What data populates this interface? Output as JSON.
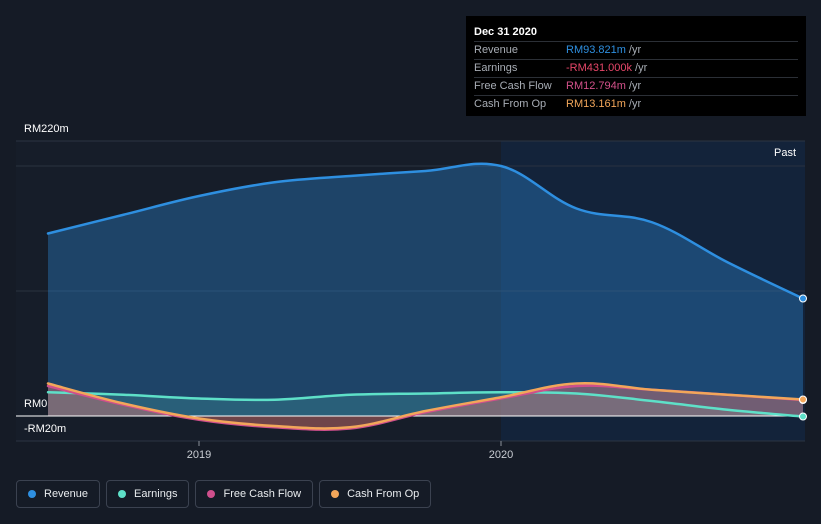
{
  "tooltip": {
    "date": "Dec 31 2020",
    "rows": [
      {
        "label": "Revenue",
        "value": "RM93.821m",
        "unit": "/yr",
        "color": "#2e8fe0"
      },
      {
        "label": "Earnings",
        "value": "-RM431.000k",
        "unit": "/yr",
        "color": "#e8476a"
      },
      {
        "label": "Free Cash Flow",
        "value": "RM12.794m",
        "unit": "/yr",
        "color": "#d3518a"
      },
      {
        "label": "Cash From Op",
        "value": "RM13.161m",
        "unit": "/yr",
        "color": "#f2a65a"
      }
    ]
  },
  "past_label": "Past",
  "legend": [
    {
      "label": "Revenue",
      "color": "#2e8fe0"
    },
    {
      "label": "Earnings",
      "color": "#5ee0c8"
    },
    {
      "label": "Free Cash Flow",
      "color": "#cf4f8c"
    },
    {
      "label": "Cash From Op",
      "color": "#f2a65a"
    }
  ],
  "chart_data": {
    "type": "area",
    "y_tick_labels": [
      "RM220m",
      "RM0",
      "-RM20m"
    ],
    "x_tick_labels": [
      "2019",
      "2020"
    ],
    "ylim": [
      -20,
      220
    ],
    "x_range": [
      2018.5,
      2021.0
    ],
    "past_region_start": 2020.0,
    "grid": true,
    "legend_position": "bottom",
    "series": [
      {
        "name": "Revenue",
        "color": "#2e8fe0",
        "x": [
          2018.5,
          2018.75,
          2019.0,
          2019.25,
          2019.5,
          2019.75,
          2020.0,
          2020.25,
          2020.5,
          2020.75,
          2021.0
        ],
        "values": [
          146,
          161,
          176,
          187,
          192,
          196,
          200,
          166,
          155,
          123,
          94
        ]
      },
      {
        "name": "Earnings",
        "color": "#5ee0c8",
        "x": [
          2018.5,
          2018.75,
          2019.0,
          2019.25,
          2019.5,
          2019.75,
          2020.0,
          2020.25,
          2020.5,
          2020.75,
          2021.0
        ],
        "values": [
          19,
          17,
          14,
          13,
          17,
          18,
          19,
          18,
          12,
          5,
          -0.4
        ]
      },
      {
        "name": "Free Cash Flow",
        "color": "#cf4f8c",
        "x": [
          2018.5,
          2018.75,
          2019.0,
          2019.25,
          2019.5,
          2019.75,
          2020.0,
          2020.25,
          2020.5,
          2020.75,
          2021.0
        ],
        "values": [
          24,
          9,
          -3,
          -9,
          -10,
          3,
          14,
          24,
          21,
          17,
          12.8
        ]
      },
      {
        "name": "Cash From Op",
        "color": "#f2a65a",
        "x": [
          2018.5,
          2018.75,
          2019.0,
          2019.25,
          2019.5,
          2019.75,
          2020.0,
          2020.25,
          2020.5,
          2020.75,
          2021.0
        ],
        "values": [
          26,
          10,
          -2,
          -8,
          -9,
          4,
          15,
          26,
          21,
          17,
          13.2
        ]
      }
    ]
  }
}
